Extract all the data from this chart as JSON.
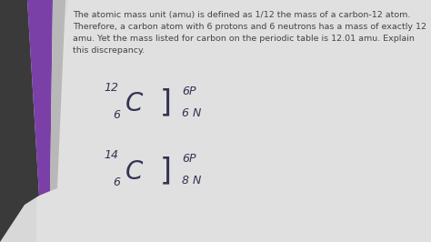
{
  "background_color": "#d8d8d8",
  "content_bg": "#e8e8e8",
  "text_block": "The atomic mass unit (amu) is defined as 1/12 the mass of a carbon-12 atom.\nTherefore, a carbon atom with 6 protons and 6 neutrons has a mass of exactly 12\namu. Yet the mass listed for carbon on the periodic table is 12.01 amu. Explain\nthis discrepancy.",
  "text_fontsize": 6.8,
  "text_color": "#444444",
  "dark_bar_color": "#3a3a3a",
  "purple_bar_color": "#7a40a8",
  "light_bar_color": "#c8c8c8",
  "fig_width": 4.74,
  "fig_height": 2.66,
  "carbon12_label": "12",
  "carbon12_sub": "6",
  "carbon12_C": "C",
  "carbon12_bracket": "]",
  "carbon12_6p": "6P",
  "carbon12_6n": "6 N",
  "carbon14_label": "14",
  "carbon14_sub": "6",
  "carbon14_C": "C",
  "carbon14_bracket": "]",
  "carbon14_6p": "6P",
  "carbon14_8n": "8 N"
}
